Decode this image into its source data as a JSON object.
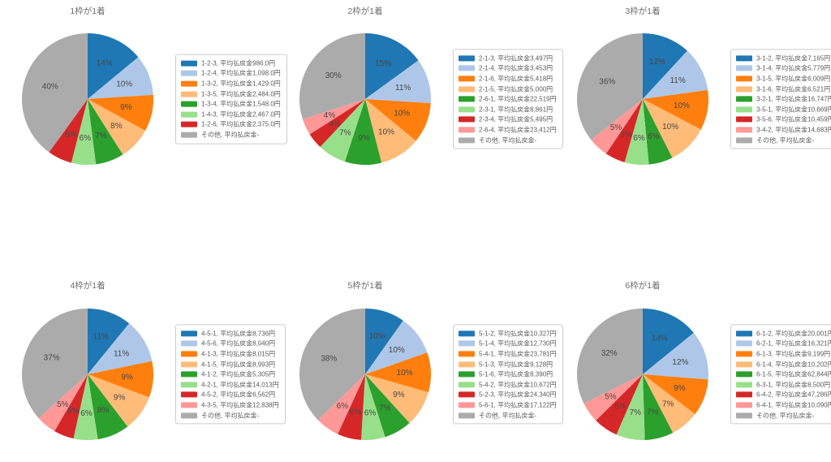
{
  "figure": {
    "background": "#ffffff",
    "grid": "2 rows x 3 columns of pie charts"
  },
  "palette": {
    "blue": "#1f77b4",
    "light_blue": "#aec7e8",
    "orange": "#ff7f0e",
    "light_orange": "#ffbb78",
    "green": "#2ca02c",
    "light_green": "#98df8a",
    "red": "#d62728",
    "pink": "#ff9896",
    "gray": "#ababab",
    "title_text": "#6e6e6e",
    "legend_text": "#595959",
    "pct_text": "#474747",
    "legend_border": "#cccccc"
  },
  "chart_data": [
    {
      "type": "pie",
      "title": "1枠が1着",
      "legend_position": "right",
      "start_angle_deg": 90,
      "direction": "clockwise",
      "slices": [
        {
          "label": "1-2-3",
          "legend": "1-2-3, 平均払戻金986.0円",
          "pct": 14,
          "pct_label": "14%",
          "color": "#1f77b4"
        },
        {
          "label": "1-2-4",
          "legend": "1-2-4, 平均払戻金1,098.0円",
          "pct": 10,
          "pct_label": "10%",
          "color": "#aec7e8"
        },
        {
          "label": "1-3-2",
          "legend": "1-3-2, 平均払戻金1,429.0円",
          "pct": 9,
          "pct_label": "9%",
          "color": "#ff7f0e"
        },
        {
          "label": "1-3-5",
          "legend": "1-3-5, 平均払戻金2,484.0円",
          "pct": 8,
          "pct_label": "8%",
          "color": "#ffbb78"
        },
        {
          "label": "1-3-4",
          "legend": "1-3-4, 平均払戻金1,548.0円",
          "pct": 7,
          "pct_label": "7%",
          "color": "#2ca02c"
        },
        {
          "label": "1-4-3",
          "legend": "1-4-3, 平均払戻金2,467.0円",
          "pct": 6,
          "pct_label": "6%",
          "color": "#98df8a"
        },
        {
          "label": "1-2-6",
          "legend": "1-2-6, 平均払戻金2,375.0円",
          "pct": 6,
          "pct_label": "6%",
          "color": "#d62728"
        },
        {
          "label": "その他",
          "legend": "その他, 平均払戻金-",
          "pct": 40,
          "pct_label": "40%",
          "color": "#ababab"
        }
      ]
    },
    {
      "type": "pie",
      "title": "2枠が1着",
      "legend_position": "right",
      "start_angle_deg": 90,
      "direction": "clockwise",
      "slices": [
        {
          "label": "2-1-3",
          "legend": "2-1-3, 平均払戻金3,497円",
          "pct": 15,
          "pct_label": "15%",
          "color": "#1f77b4"
        },
        {
          "label": "2-1-4",
          "legend": "2-1-4, 平均払戻金3,453円",
          "pct": 11,
          "pct_label": "11%",
          "color": "#aec7e8"
        },
        {
          "label": "2-1-6",
          "legend": "2-1-6, 平均払戻金5,418円",
          "pct": 10,
          "pct_label": "10%",
          "color": "#ff7f0e"
        },
        {
          "label": "2-1-5",
          "legend": "2-1-5, 平均払戻金5,000円",
          "pct": 10,
          "pct_label": "10%",
          "color": "#ffbb78"
        },
        {
          "label": "2-6-1",
          "legend": "2-6-1, 平均払戻金22,519円",
          "pct": 9,
          "pct_label": "9%",
          "color": "#2ca02c"
        },
        {
          "label": "2-3-1",
          "legend": "2-3-1, 平均払戻金8,861円",
          "pct": 7,
          "pct_label": "7%",
          "color": "#98df8a"
        },
        {
          "label": "2-3-4",
          "legend": "2-3-4, 平均払戻金5,495円",
          "pct": 4,
          "pct_label": "4%",
          "color": "#d62728"
        },
        {
          "label": "2-6-4",
          "legend": "2-6-4, 平均払戻金23,412円",
          "pct": 4,
          "pct_label": "4%",
          "color": "#ff9896"
        },
        {
          "label": "その他",
          "legend": "その他, 平均払戻金-",
          "pct": 30,
          "pct_label": "30%",
          "color": "#ababab"
        }
      ]
    },
    {
      "type": "pie",
      "title": "3枠が1着",
      "legend_position": "right",
      "start_angle_deg": 90,
      "direction": "clockwise",
      "slices": [
        {
          "label": "3-1-2",
          "legend": "3-1-2, 平均払戻金7,165円",
          "pct": 12,
          "pct_label": "12%",
          "color": "#1f77b4"
        },
        {
          "label": "3-1-4",
          "legend": "3-1-4, 平均払戻金5,779円",
          "pct": 11,
          "pct_label": "11%",
          "color": "#aec7e8"
        },
        {
          "label": "3-1-5",
          "legend": "3-1-5, 平均払戻金6,009円",
          "pct": 10,
          "pct_label": "10%",
          "color": "#ff7f0e"
        },
        {
          "label": "3-1-6",
          "legend": "3-1-6, 平均払戻金6,521円",
          "pct": 10,
          "pct_label": "10%",
          "color": "#ffbb78"
        },
        {
          "label": "3-2-1",
          "legend": "3-2-1, 平均払戻金16,747円",
          "pct": 6,
          "pct_label": "6%",
          "color": "#2ca02c"
        },
        {
          "label": "3-5-1",
          "legend": "3-5-1, 平均払戻金10,669円",
          "pct": 6,
          "pct_label": "6%",
          "color": "#98df8a"
        },
        {
          "label": "3-5-6",
          "legend": "3-5-6, 平均払戻金10,459円",
          "pct": 5,
          "pct_label": "5%",
          "color": "#d62728"
        },
        {
          "label": "3-4-2",
          "legend": "3-4-2, 平均払戻金14,683円",
          "pct": 5,
          "pct_label": "5%",
          "color": "#ff9896"
        },
        {
          "label": "その他",
          "legend": "その他, 平均払戻金-",
          "pct": 36,
          "pct_label": "36%",
          "color": "#ababab"
        }
      ]
    },
    {
      "type": "pie",
      "title": "4枠が1着",
      "legend_position": "right",
      "start_angle_deg": 90,
      "direction": "clockwise",
      "slices": [
        {
          "label": "4-5-1",
          "legend": "4-5-1, 平均払戻金8,736円",
          "pct": 11,
          "pct_label": "11%",
          "color": "#1f77b4"
        },
        {
          "label": "4-5-6",
          "legend": "4-5-6, 平均払戻金8,040円",
          "pct": 11,
          "pct_label": "11%",
          "color": "#aec7e8"
        },
        {
          "label": "4-1-3",
          "legend": "4-1-3, 平均払戻金8,015円",
          "pct": 9,
          "pct_label": "9%",
          "color": "#ff7f0e"
        },
        {
          "label": "4-1-5",
          "legend": "4-1-5, 平均払戻金8,993円",
          "pct": 9,
          "pct_label": "9%",
          "color": "#ffbb78"
        },
        {
          "label": "4-1-2",
          "legend": "4-1-2, 平均払戻金5,305円",
          "pct": 8,
          "pct_label": "8%",
          "color": "#2ca02c"
        },
        {
          "label": "4-2-1",
          "legend": "4-2-1, 平均払戻金14,013円",
          "pct": 6,
          "pct_label": "6%",
          "color": "#98df8a"
        },
        {
          "label": "4-5-2",
          "legend": "4-5-2, 平均払戻金6,562円",
          "pct": 5,
          "pct_label": "5%",
          "color": "#d62728"
        },
        {
          "label": "4-3-5",
          "legend": "4-3-5, 平均払戻金12,838円",
          "pct": 5,
          "pct_label": "5%",
          "color": "#ff9896"
        },
        {
          "label": "その他",
          "legend": "その他, 平均払戻金-",
          "pct": 37,
          "pct_label": "37%",
          "color": "#ababab"
        }
      ]
    },
    {
      "type": "pie",
      "title": "5枠が1着",
      "legend_position": "right",
      "start_angle_deg": 90,
      "direction": "clockwise",
      "slices": [
        {
          "label": "5-1-2",
          "legend": "5-1-2, 平均払戻金10,327円",
          "pct": 10,
          "pct_label": "10%",
          "color": "#1f77b4"
        },
        {
          "label": "5-1-4",
          "legend": "5-1-4, 平均払戻金12,730円",
          "pct": 10,
          "pct_label": "10%",
          "color": "#aec7e8"
        },
        {
          "label": "5-4-1",
          "legend": "5-4-1, 平均払戻金23,781円",
          "pct": 10,
          "pct_label": "10%",
          "color": "#ff7f0e"
        },
        {
          "label": "5-1-3",
          "legend": "5-1-3, 平均払戻金9,128円",
          "pct": 9,
          "pct_label": "9%",
          "color": "#ffbb78"
        },
        {
          "label": "5-1-6",
          "legend": "5-1-6, 平均払戻金8,390円",
          "pct": 7,
          "pct_label": "7%",
          "color": "#2ca02c"
        },
        {
          "label": "5-4-2",
          "legend": "5-4-2, 平均払戻金10,672円",
          "pct": 6,
          "pct_label": "6%",
          "color": "#98df8a"
        },
        {
          "label": "5-2-3",
          "legend": "5-2-3, 平均払戻金24,340円",
          "pct": 6,
          "pct_label": "6%",
          "color": "#d62728"
        },
        {
          "label": "5-6-1",
          "legend": "5-6-1, 平均払戻金17,122円",
          "pct": 6,
          "pct_label": "6%",
          "color": "#ff9896"
        },
        {
          "label": "その他",
          "legend": "その他, 平均払戻金-",
          "pct": 38,
          "pct_label": "38%",
          "color": "#ababab"
        }
      ]
    },
    {
      "type": "pie",
      "title": "6枠が1着",
      "legend_position": "right",
      "start_angle_deg": 90,
      "direction": "clockwise",
      "slices": [
        {
          "label": "6-1-2",
          "legend": "6-1-2, 平均払戻金20,001円",
          "pct": 14,
          "pct_label": "14%",
          "color": "#1f77b4"
        },
        {
          "label": "6-2-1",
          "legend": "6-2-1, 平均払戻金16,321円",
          "pct": 12,
          "pct_label": "12%",
          "color": "#aec7e8"
        },
        {
          "label": "6-1-3",
          "legend": "6-1-3, 平均払戻金9,199円",
          "pct": 9,
          "pct_label": "9%",
          "color": "#ff7f0e"
        },
        {
          "label": "6-1-4",
          "legend": "6-1-4, 平均払戻金10,202円",
          "pct": 7,
          "pct_label": "7%",
          "color": "#ffbb78"
        },
        {
          "label": "6-1-5",
          "legend": "6-1-5, 平均払戻金62,844円",
          "pct": 7,
          "pct_label": "7%",
          "color": "#2ca02c"
        },
        {
          "label": "6-3-1",
          "legend": "6-3-1, 平均払戻金8,500円",
          "pct": 7,
          "pct_label": "7%",
          "color": "#98df8a"
        },
        {
          "label": "6-4-2",
          "legend": "6-4-2, 平均払戻金47,286円",
          "pct": 6,
          "pct_label": "6%",
          "color": "#d62728"
        },
        {
          "label": "6-4-1",
          "legend": "6-4-1, 平均払戻金10,090円",
          "pct": 5,
          "pct_label": "5%",
          "color": "#ff9896"
        },
        {
          "label": "その他",
          "legend": "その他, 平均払戻金-",
          "pct": 32,
          "pct_label": "32%",
          "color": "#ababab"
        }
      ]
    }
  ]
}
